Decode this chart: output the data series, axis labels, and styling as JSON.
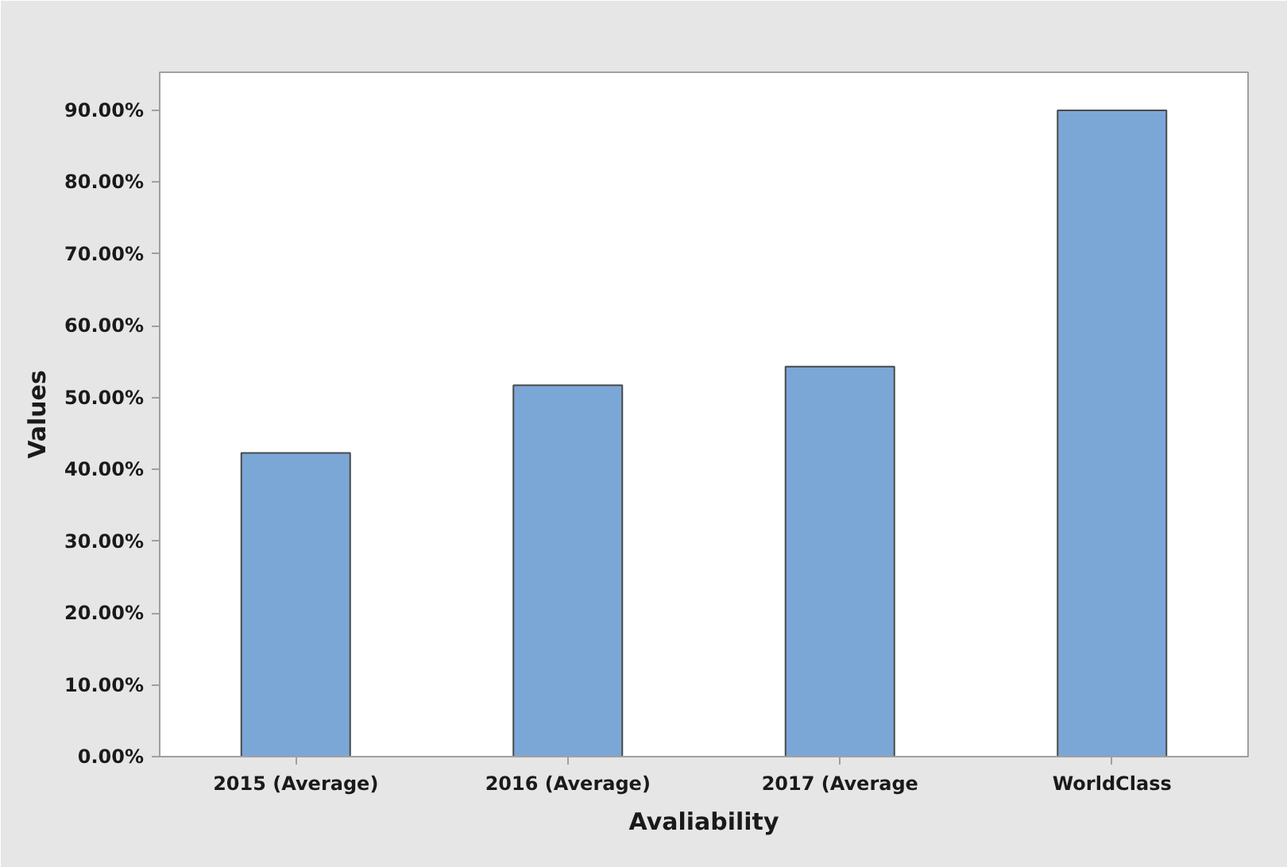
{
  "chart_data": {
    "type": "bar",
    "xlabel": "Avaliability",
    "ylabel": "Values",
    "categories": [
      "2015 (Average)",
      "2016 (Average)",
      "2017 (Average",
      "WorldClass"
    ],
    "values": [
      42.3,
      51.7,
      54.3,
      90.0
    ],
    "color": "#7ba7d7",
    "ylim": [
      0,
      95.3
    ],
    "yticks": [
      {
        "value": 0,
        "label": "0.00%"
      },
      {
        "value": 10,
        "label": "10.00%"
      },
      {
        "value": 20,
        "label": "20.00%"
      },
      {
        "value": 30,
        "label": "30.00%"
      },
      {
        "value": 40,
        "label": "40.00%"
      },
      {
        "value": 50,
        "label": "50.00%"
      },
      {
        "value": 60,
        "label": "60.00%"
      },
      {
        "value": 70,
        "label": "70.00%"
      },
      {
        "value": 80,
        "label": "80.00%"
      },
      {
        "value": 90,
        "label": "90.00%"
      }
    ],
    "grid": false
  }
}
